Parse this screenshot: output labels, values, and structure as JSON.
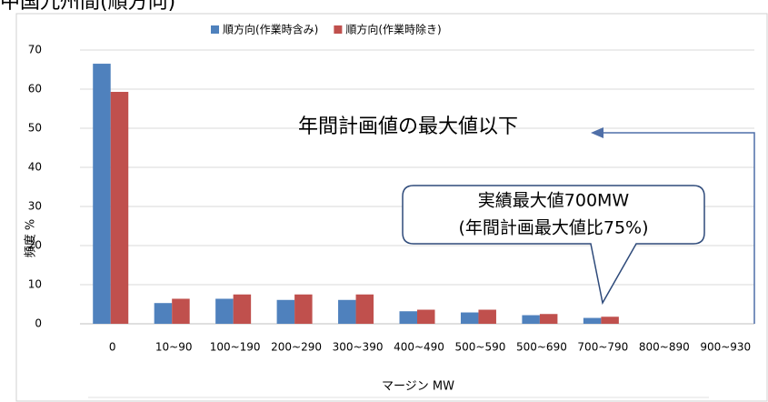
{
  "chart_data": {
    "type": "bar",
    "title": "中国九州間(順方向)",
    "categories": [
      "0",
      "10~90",
      "100~190",
      "200~290",
      "300~390",
      "400~490",
      "500~590",
      "500~690",
      "700~790",
      "800~890",
      "900~930"
    ],
    "series": [
      {
        "name": "順方向(作業時含み)",
        "color": "#4f81bd",
        "values": [
          66.5,
          5.3,
          6.4,
          6.1,
          6.1,
          3.2,
          2.9,
          2.2,
          1.5,
          0,
          0
        ]
      },
      {
        "name": "順方向(作業時除き)",
        "color": "#c0504d",
        "values": [
          59.3,
          6.4,
          7.5,
          7.5,
          7.5,
          3.6,
          3.6,
          2.5,
          1.8,
          0,
          0
        ]
      }
    ],
    "ylim": [
      0,
      70
    ],
    "yticks": [
      0,
      10,
      20,
      30,
      40,
      50,
      60,
      70
    ],
    "grid": true,
    "y_label": "頻度 %",
    "x_label": "マージン MW",
    "annotations": [
      "年間計画値の最大値以下",
      "実績最大値700MW",
      "(年間計画最大値比75%)"
    ]
  }
}
